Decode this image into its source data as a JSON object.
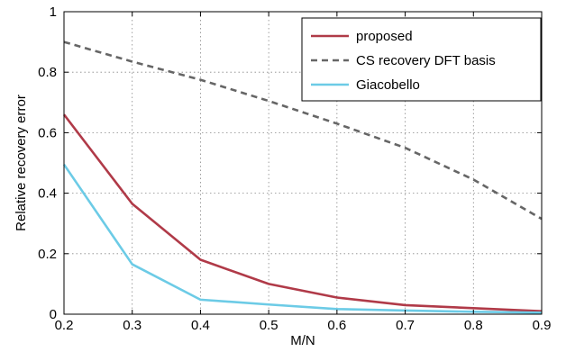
{
  "chart_data": {
    "type": "line",
    "title": "",
    "xlabel": "M/N",
    "ylabel": "Relative recovery error",
    "xlim": [
      0.2,
      0.9
    ],
    "ylim": [
      0,
      1
    ],
    "xticks": [
      "0.2",
      "0.3",
      "0.4",
      "0.5",
      "0.6",
      "0.7",
      "0.8",
      "0.9"
    ],
    "yticks": [
      "0",
      "0.2",
      "0.4",
      "0.6",
      "0.8",
      "1"
    ],
    "grid": true,
    "legend_position": "top-right",
    "x": [
      0.2,
      0.3,
      0.4,
      0.5,
      0.6,
      0.7,
      0.8,
      0.9
    ],
    "series": [
      {
        "name": "proposed",
        "color": "#b03a48",
        "style": "solid",
        "values": [
          0.66,
          0.365,
          0.18,
          0.1,
          0.055,
          0.03,
          0.02,
          0.01
        ]
      },
      {
        "name": "CS recovery DFT basis",
        "color": "#666666",
        "style": "dashed",
        "values": [
          0.9,
          0.835,
          0.775,
          0.705,
          0.63,
          0.55,
          0.445,
          0.315
        ]
      },
      {
        "name": "Giacobello",
        "color": "#6ccbe6",
        "style": "solid",
        "values": [
          0.495,
          0.165,
          0.048,
          0.032,
          0.017,
          0.012,
          0.008,
          0.005
        ]
      }
    ]
  }
}
